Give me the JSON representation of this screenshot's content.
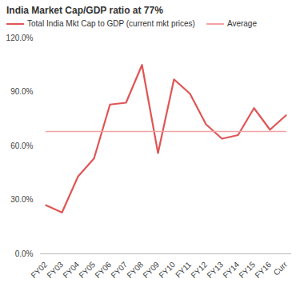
{
  "chart_data": {
    "type": "line",
    "title": "India Market Cap/GDP ratio at 77%",
    "categories": [
      "FY02",
      "FY03",
      "FY04",
      "FY05",
      "FY06",
      "FY07",
      "FY08",
      "FY09",
      "FY10",
      "FY11",
      "FY12",
      "FY13",
      "FY14",
      "FY15",
      "FY16",
      "Curr"
    ],
    "series": [
      {
        "name": "Total India Mkt Cap to GDP (current mkt prices)",
        "color": "#e05555",
        "values": [
          27,
          23,
          43,
          53,
          83,
          84,
          105,
          56,
          97,
          89,
          72,
          64,
          66,
          81,
          69,
          77
        ]
      },
      {
        "name": "Average",
        "color": "#f2a3a3",
        "values": [
          68,
          68,
          68,
          68,
          68,
          68,
          68,
          68,
          68,
          68,
          68,
          68,
          68,
          68,
          68,
          68
        ]
      }
    ],
    "ylim": [
      0,
      120
    ],
    "yticks": [
      {
        "value": 0,
        "label": "0.0%"
      },
      {
        "value": 30,
        "label": "30.0%"
      },
      {
        "value": 60,
        "label": "60.0%"
      },
      {
        "value": 90,
        "label": "90.0%"
      },
      {
        "value": 120,
        "label": "120.0%"
      }
    ],
    "grid": false,
    "legend": "top"
  }
}
